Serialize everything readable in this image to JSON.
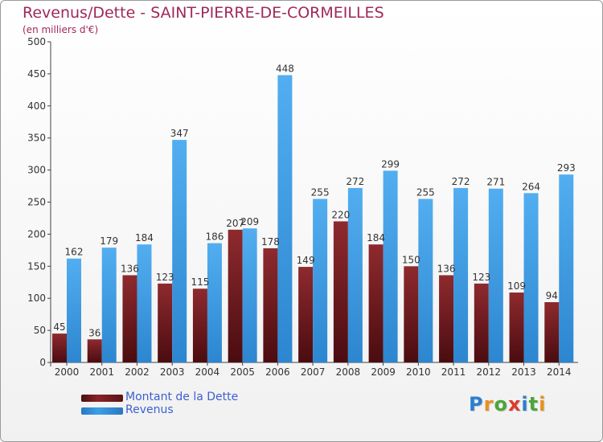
{
  "title": "Revenus/Dette - SAINT-PIERRE-DE-CORMEILLES",
  "subtitle": "(en milliers d'€)",
  "colors": {
    "title": "#a0285a",
    "dette": "#8a2228",
    "revenus": "#3d9ee8",
    "axis_text": "#333333",
    "legend_text": "#3d5fd0"
  },
  "legend": {
    "dette_label": "Montant de la Dette",
    "revenus_label": "Revenus"
  },
  "logo": {
    "letters": [
      "P",
      "r",
      "o",
      "x",
      "i",
      "t",
      "i"
    ],
    "colors": [
      "#2a7fd0",
      "#e8901f",
      "#4aa63a",
      "#e0392b",
      "#2a7fd0",
      "#4aa63a",
      "#e8901f"
    ]
  },
  "chart_data": {
    "type": "bar",
    "title": "Revenus/Dette - SAINT-PIERRE-DE-CORMEILLES",
    "ylabel": "(en milliers d'€)",
    "categories": [
      "2000",
      "2001",
      "2002",
      "2003",
      "2004",
      "2005",
      "2006",
      "2007",
      "2008",
      "2009",
      "2010",
      "2011",
      "2012",
      "2013",
      "2014"
    ],
    "series": [
      {
        "name": "Montant de la Dette",
        "values": [
          45,
          36,
          136,
          123,
          115,
          207,
          178,
          149,
          220,
          184,
          150,
          136,
          123,
          109,
          94
        ]
      },
      {
        "name": "Revenus",
        "values": [
          162,
          179,
          184,
          347,
          186,
          209,
          448,
          255,
          272,
          299,
          255,
          272,
          271,
          264,
          293
        ]
      }
    ],
    "ylim": [
      0,
      500
    ],
    "yticks": [
      0,
      50,
      100,
      150,
      200,
      250,
      300,
      350,
      400,
      450,
      500
    ],
    "grid": false,
    "legend_position": "bottom-left"
  }
}
